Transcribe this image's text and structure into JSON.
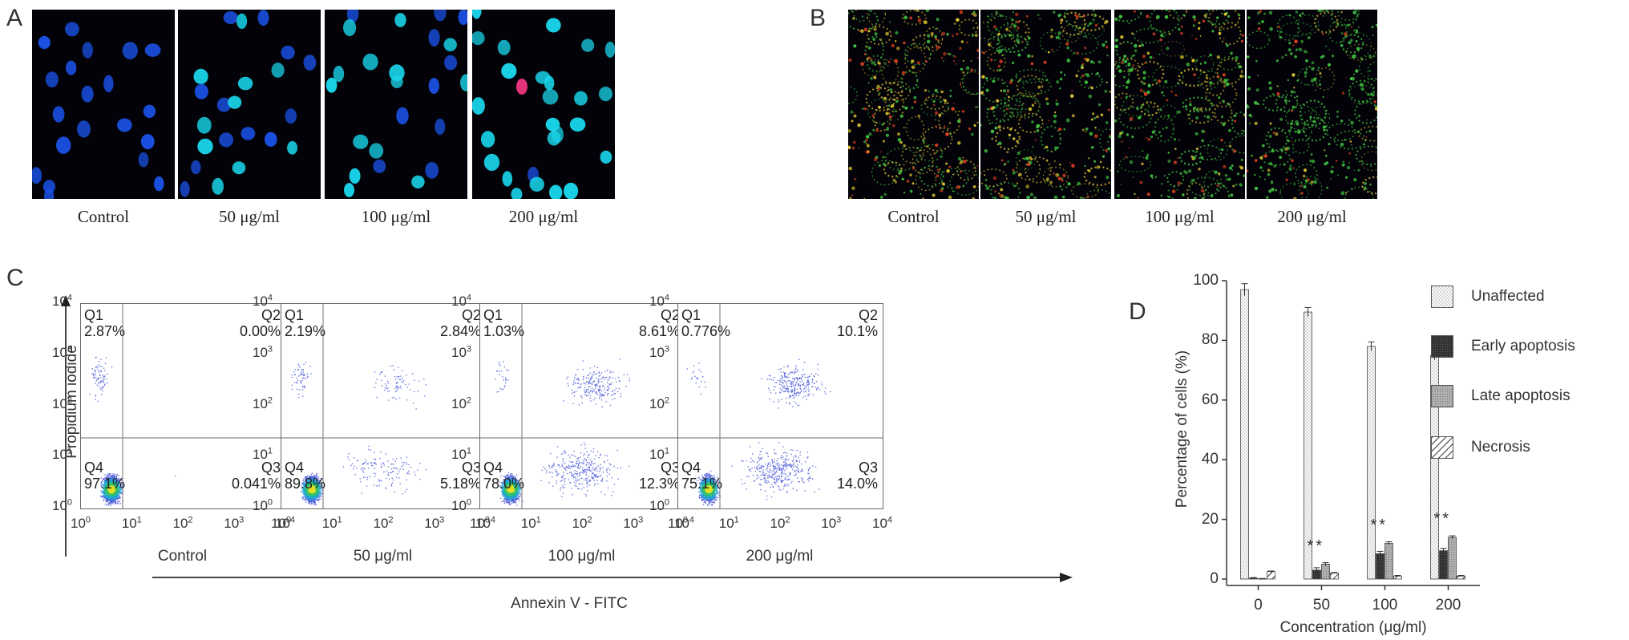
{
  "panels": {
    "a": "A",
    "b": "B",
    "c": "C",
    "d": "D"
  },
  "panel_a": {
    "captions": [
      "Control",
      "50 μg/ml",
      "100 μg/ml",
      "200 μg/ml"
    ],
    "colors": {
      "background": "#02020a",
      "nucleus": "#1a4fe0",
      "bright_nucleus": "#19d3e8",
      "apoptotic_nucleus": "#e0337a"
    }
  },
  "panel_b": {
    "captions": [
      "Control",
      "50 μg/ml",
      "100 μg/ml",
      "200 μg/ml"
    ],
    "colors": {
      "background": "#050503",
      "red_aggregate": "#d84020",
      "yellow": "#d8c030",
      "green_monomer": "#40c040"
    }
  },
  "panel_c": {
    "y_axis_title": "Propidium iodide",
    "x_axis_title": "Annexin V - FITC",
    "tick_labels": [
      "10",
      "10",
      "10",
      "10",
      "10"
    ],
    "tick_exponents": [
      "0",
      "1",
      "2",
      "3",
      "4"
    ],
    "quadrant_names": [
      "Q1",
      "Q2",
      "Q3",
      "Q4"
    ],
    "plots": [
      {
        "caption": "Control",
        "q1": "2.87%",
        "q2": "0.00%",
        "q3": "0.041%",
        "q4": "97.1%"
      },
      {
        "caption": "50 μg/ml",
        "q1": "2.19%",
        "q2": "2.84%",
        "q3": "5.18%",
        "q4": "89.8%"
      },
      {
        "caption": "100 μg/ml",
        "q1": "1.03%",
        "q2": "8.61%",
        "q3": "12.3%",
        "q4": "78.0%"
      },
      {
        "caption": "200 μg/ml",
        "q1": "0.776%",
        "q2": "10.1%",
        "q3": "14.0%",
        "q4": "75.1%"
      }
    ]
  },
  "chart_data": {
    "type": "bar",
    "title": "",
    "xlabel": "Concentration (μg/ml)",
    "ylabel": "Percentage of cells (%)",
    "ylim": [
      0,
      100
    ],
    "yticks": [
      "0",
      "20",
      "40",
      "60",
      "80",
      "100"
    ],
    "categories": [
      "0",
      "50",
      "100",
      "200"
    ],
    "series": [
      {
        "name": "Unaffected",
        "values": [
          97,
          89.5,
          78,
          75
        ],
        "errors": [
          2,
          1.5,
          1.5,
          1.5
        ]
      },
      {
        "name": "Early apoptosis",
        "values": [
          0.3,
          3,
          8.5,
          9.5
        ],
        "errors": [
          0.2,
          0.8,
          0.8,
          0.8
        ]
      },
      {
        "name": "Late apoptosis",
        "values": [
          0.1,
          5,
          12,
          14
        ],
        "errors": [
          0.1,
          0.5,
          0.5,
          0.5
        ]
      },
      {
        "name": "Necrosis",
        "values": [
          2.5,
          2,
          1,
          1
        ],
        "errors": [
          0.2,
          0.2,
          0.2,
          0.2
        ]
      }
    ],
    "significance": [
      {
        "category": "50",
        "label": "**"
      },
      {
        "category": "100",
        "label": "**"
      },
      {
        "category": "200",
        "label": "**"
      }
    ],
    "legend_position": "right"
  }
}
